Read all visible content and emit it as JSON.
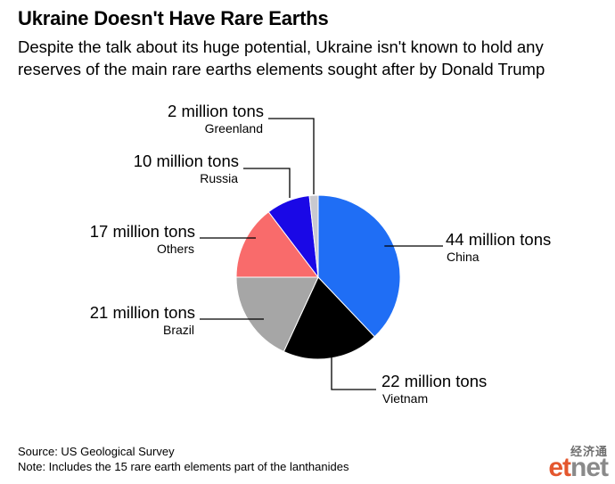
{
  "header": {
    "title": "Ukraine Doesn't Have Rare Earths",
    "subtitle": "Despite the talk about its huge potential, Ukraine isn't known to hold any reserves of the main rare earths elements sought after by Donald Trump"
  },
  "chart_data": {
    "type": "pie",
    "slices": [
      {
        "label": "China",
        "value": 44,
        "value_text": "44 million tons",
        "color": "#1f6ef5"
      },
      {
        "label": "Vietnam",
        "value": 22,
        "value_text": "22 million tons",
        "color": "#000000"
      },
      {
        "label": "Brazil",
        "value": 21,
        "value_text": "21 million tons",
        "color": "#a6a6a6"
      },
      {
        "label": "Others",
        "value": 17,
        "value_text": "17 million tons",
        "color": "#f96b6b"
      },
      {
        "label": "Russia",
        "value": 10,
        "value_text": "10 million tons",
        "color": "#1a08e6"
      },
      {
        "label": "Greenland",
        "value": 2,
        "value_text": "2 million tons",
        "color": "#c9c9cf"
      }
    ],
    "start_angle_deg": 0,
    "direction": "clockwise"
  },
  "footer": {
    "source": "Source: US Geological Survey",
    "note": "Note: Includes the 15 rare earth elements part of the lanthanides"
  },
  "logo": {
    "chinese": "经济通",
    "prefix": "et",
    "suffix": "net"
  }
}
